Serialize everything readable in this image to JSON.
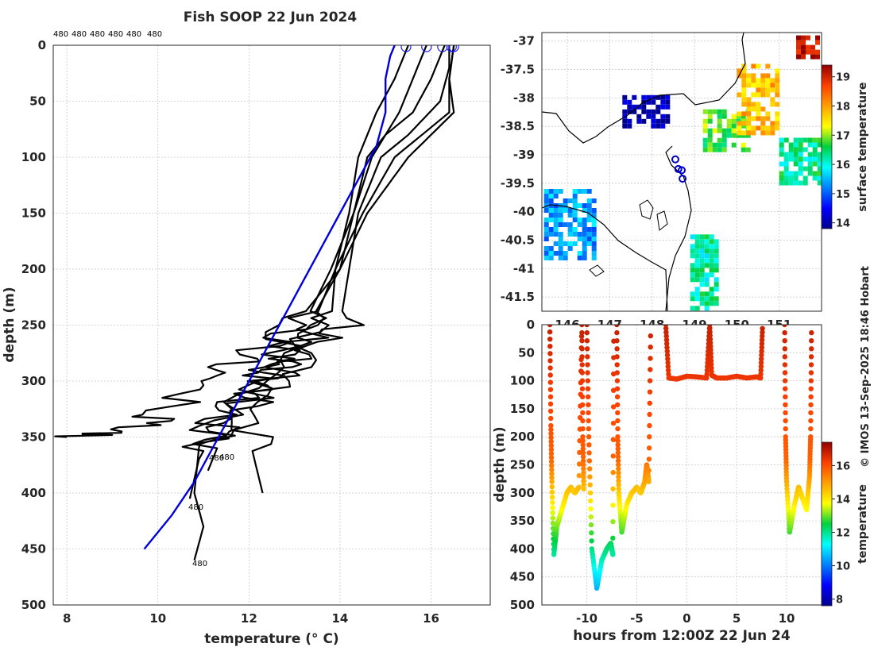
{
  "title": "Fish SOOP 22 Jun 2024",
  "credit": "© IMOS 13-Sep-2025 18:46 Hobart",
  "profile_ids": [
    "480",
    "480",
    "480",
    "480",
    "480",
    "480"
  ],
  "profile_end_label": "480",
  "colors": {
    "profile": "#000000",
    "climatology": "#0000dd",
    "grid": "#c8c8c8",
    "coast": "#000000",
    "marker": "#1a1aff"
  },
  "chart_data": [
    {
      "type": "line",
      "name": "profiles",
      "title": "Fish SOOP 22 Jun 2024",
      "xlabel": "temperature (° C)",
      "ylabel": "depth (m)",
      "xlim": [
        7.7,
        17.3
      ],
      "ylim": [
        500,
        0
      ],
      "xticks": [
        8,
        10,
        12,
        14,
        16
      ],
      "yticks": [
        0,
        50,
        100,
        150,
        200,
        250,
        300,
        350,
        400,
        450,
        500
      ],
      "climatology": {
        "depth": [
          0,
          10,
          30,
          60,
          90,
          120,
          150,
          180,
          210,
          240,
          270,
          300,
          330,
          360,
          390,
          420,
          450
        ],
        "temp": [
          15.2,
          15.1,
          15.0,
          15.0,
          14.8,
          14.4,
          14.0,
          13.6,
          13.2,
          12.8,
          12.4,
          12.0,
          11.6,
          11.2,
          10.8,
          10.3,
          9.7
        ]
      },
      "series": [
        {
          "name": "profile",
          "depth": [
            0,
            30,
            60,
            80,
            100,
            150,
            200,
            250,
            280,
            300,
            330,
            360,
            380
          ],
          "temp": [
            15.5,
            15.2,
            14.8,
            14.6,
            14.4,
            14.2,
            13.9,
            13.4,
            12.8,
            12.1,
            11.2,
            11.3,
            11.1
          ]
        },
        {
          "name": "profile",
          "depth": [
            0,
            30,
            60,
            80,
            100,
            150,
            200,
            250,
            280,
            300,
            330,
            360,
            400,
            430,
            460
          ],
          "temp": [
            16.3,
            16.0,
            15.6,
            15.0,
            14.6,
            14.3,
            14.0,
            13.3,
            12.8,
            12.5,
            11.6,
            10.9,
            10.8,
            11.0,
            10.8
          ]
        },
        {
          "name": "profile",
          "depth": [
            0,
            30,
            60,
            80,
            100,
            150,
            200,
            250,
            300,
            340,
            370,
            405
          ],
          "temp": [
            16.5,
            16.4,
            16.4,
            15.8,
            15.2,
            14.5,
            13.9,
            13.8,
            12.5,
            11.3,
            10.9,
            10.7
          ]
        },
        {
          "name": "profile",
          "depth": [
            0,
            30,
            60,
            80,
            100,
            150,
            200,
            250,
            280,
            300,
            330,
            345,
            350
          ],
          "temp": [
            15.9,
            15.6,
            15.3,
            15.0,
            14.7,
            14.3,
            13.8,
            13.2,
            12.0,
            11.0,
            10.0,
            9.5,
            8.0
          ]
        },
        {
          "name": "profile",
          "depth": [
            0,
            30,
            60,
            80,
            100,
            150,
            200,
            250,
            300,
            350,
            400
          ],
          "temp": [
            16.5,
            16.4,
            16.5,
            16.0,
            15.5,
            14.6,
            14.0,
            13.0,
            12.0,
            12.0,
            12.3
          ]
        },
        {
          "name": "profile",
          "depth": [
            0,
            20,
            50,
            80,
            100,
            150,
            200,
            250,
            280,
            300,
            350
          ],
          "temp": [
            16.4,
            16.4,
            16.2,
            15.5,
            14.9,
            14.4,
            14.2,
            14.0,
            12.8,
            12.0,
            11.6
          ]
        }
      ],
      "markers": {
        "depth": [
          0,
          0,
          0,
          0,
          0
        ],
        "temp": [
          15.45,
          15.9,
          16.25,
          16.45,
          16.5
        ]
      }
    },
    {
      "type": "heatmap",
      "name": "sst-map",
      "xlim": [
        145.4,
        152.0
      ],
      "ylim": [
        -41.75,
        -36.85
      ],
      "xticks": [
        146,
        147,
        148,
        149,
        150,
        151
      ],
      "xtick_labels": [
        "146",
        "147",
        "148",
        "149",
        "150",
        "151"
      ],
      "yticks": [
        -37,
        -37.5,
        -38,
        -38.5,
        -39,
        -39.5,
        -40,
        -40.5,
        -41,
        -41.5
      ],
      "ytick_labels": [
        "-37",
        "-37.5",
        "-38",
        "-38.5",
        "-39",
        "-39.5",
        "-40",
        "-40.5",
        "-41",
        "-41.5"
      ],
      "colorbar": {
        "label": "surface temperature",
        "range": [
          13.8,
          19.4
        ],
        "ticks": [
          14,
          15,
          16,
          17,
          18,
          19
        ],
        "tick_labels": [
          "14",
          "15",
          "16",
          "17",
          "18",
          "19"
        ]
      },
      "patches": [
        {
          "lon": [
            147.3,
            148.4
          ],
          "lat": [
            -38.5,
            -37.95
          ],
          "sst": 14.0
        },
        {
          "lon": [
            145.45,
            146.6
          ],
          "lat": [
            -40.8,
            -39.6
          ],
          "sst": 15.4
        },
        {
          "lon": [
            148.9,
            149.5
          ],
          "lat": [
            -41.7,
            -40.4
          ],
          "sst": 16.2
        },
        {
          "lon": [
            149.2,
            150.3
          ],
          "lat": [
            -38.9,
            -38.2
          ],
          "sst": 16.8
        },
        {
          "lon": [
            150.0,
            151.0
          ],
          "lat": [
            -38.6,
            -37.4
          ],
          "sst": 17.8
        },
        {
          "lon": [
            151.0,
            151.9
          ],
          "lat": [
            -39.5,
            -38.7
          ],
          "sst": 16.3
        },
        {
          "lon": [
            151.4,
            151.9
          ],
          "lat": [
            -37.3,
            -36.9
          ],
          "sst": 19.2
        }
      ],
      "drop_positions": {
        "lon": [
          148.55,
          148.62,
          148.7,
          148.72
        ],
        "lat": [
          -39.08,
          -39.25,
          -39.27,
          -39.42
        ]
      }
    },
    {
      "type": "scatter",
      "name": "section",
      "xlabel": "hours from 12:00Z 22 Jun 24",
      "ylabel": "depth (m)",
      "xlim": [
        -14.5,
        13.5
      ],
      "ylim": [
        500,
        0
      ],
      "xticks": [
        -10,
        -5,
        0,
        5,
        10
      ],
      "xtick_labels": [
        "-10",
        "-5",
        "0",
        "5",
        "10"
      ],
      "yticks": [
        0,
        50,
        100,
        150,
        200,
        250,
        300,
        350,
        400,
        450,
        500
      ],
      "colorbar": {
        "label": "temperature",
        "range": [
          7.6,
          17.4
        ],
        "ticks": [
          8,
          10,
          12,
          14,
          16
        ],
        "tick_labels": [
          "8",
          "10",
          "12",
          "14",
          "16"
        ]
      },
      "casts": [
        {
          "hours": [
            -13.7,
            -13.6,
            -13.5,
            -13.3,
            -13.0,
            -12.5,
            -12.0,
            -11.6,
            -11.2,
            -10.8,
            -10.5,
            -10.4,
            -10.3
          ],
          "depth": [
            0,
            180,
            280,
            410,
            360,
            330,
            300,
            290,
            300,
            290,
            0,
            200,
            300
          ]
        },
        {
          "hours": [
            -10.0,
            -9.8,
            -9.5,
            -9.0,
            -8.5,
            -8.0,
            -7.6,
            -7.4,
            -7.3
          ],
          "depth": [
            0,
            200,
            400,
            470,
            420,
            400,
            390,
            410,
            0
          ]
        },
        {
          "hours": [
            -7.0,
            -6.9,
            -6.8,
            -6.5,
            -6.0,
            -5.5,
            -5.0,
            -4.6,
            -4.2,
            -4.0,
            -3.8,
            -3.6
          ],
          "depth": [
            0,
            200,
            300,
            370,
            320,
            300,
            290,
            300,
            280,
            250,
            280,
            0
          ]
        },
        {
          "hours": [
            -2.1,
            -1.8,
            -1.0,
            0,
            1.0,
            2.0,
            2.3,
            2.5,
            3.0,
            4.0,
            5.0,
            6.0,
            7.0,
            7.4,
            7.6
          ],
          "depth": [
            0,
            95,
            97,
            92,
            93,
            95,
            0,
            90,
            95,
            95,
            92,
            95,
            93,
            95,
            0
          ]
        },
        {
          "hours": [
            9.8,
            9.9,
            10.0,
            10.3,
            10.8,
            11.2,
            11.6,
            12.0,
            12.3,
            12.4,
            12.5
          ],
          "depth": [
            0,
            200,
            280,
            370,
            320,
            290,
            310,
            330,
            270,
            200,
            0
          ]
        }
      ]
    }
  ]
}
